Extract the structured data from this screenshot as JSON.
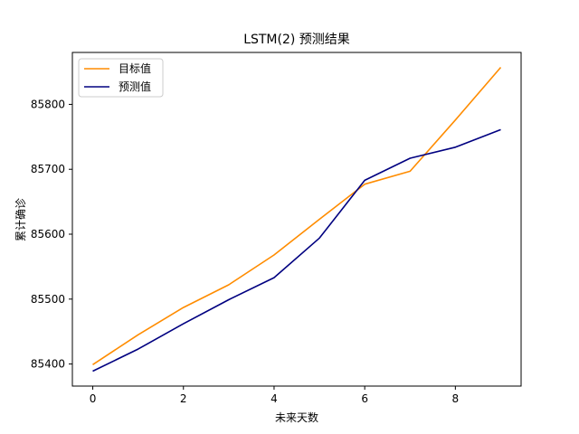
{
  "chart_data": {
    "type": "line",
    "title": "LSTM(2) 预测结果",
    "xlabel": "未来天数",
    "ylabel": "累计确诊",
    "x": [
      0,
      1,
      2,
      3,
      4,
      5,
      6,
      7,
      8,
      9
    ],
    "xlim": [
      -0.45,
      9.45
    ],
    "ylim": [
      85366,
      85880
    ],
    "xticks": [
      0,
      2,
      4,
      6,
      8
    ],
    "xtick_labels": [
      "0",
      "2",
      "4",
      "6",
      "8"
    ],
    "yticks": [
      85400,
      85500,
      85600,
      85700,
      85800
    ],
    "ytick_labels": [
      "85400",
      "85500",
      "85600",
      "85700",
      "85800"
    ],
    "grid": false,
    "legend_position": "top-left",
    "series": [
      {
        "name": "目标值",
        "color": "#ff8c00",
        "values": [
          85399,
          85445,
          85487,
          85522,
          85568,
          85623,
          85677,
          85697,
          85776,
          85857
        ]
      },
      {
        "name": "预测值",
        "color": "#000080",
        "values": [
          85389,
          85423,
          85462,
          85499,
          85533,
          85594,
          85683,
          85717,
          85734,
          85761
        ]
      }
    ]
  }
}
